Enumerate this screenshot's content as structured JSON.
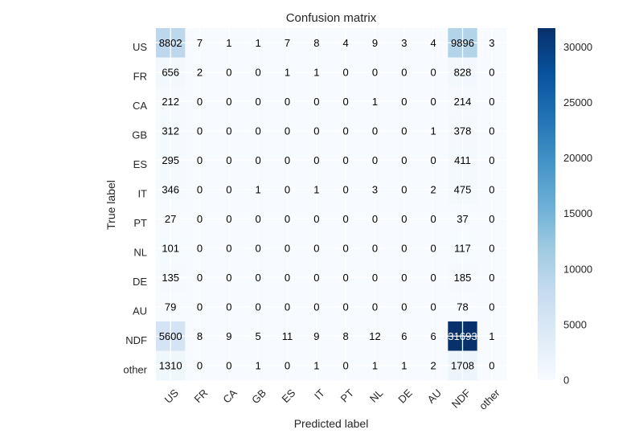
{
  "chart_data": {
    "type": "heatmap",
    "title": "Confusion matrix",
    "xlabel": "Predicted label",
    "ylabel": "True label",
    "x_categories": [
      "US",
      "FR",
      "CA",
      "GB",
      "ES",
      "IT",
      "PT",
      "NL",
      "DE",
      "AU",
      "NDF",
      "other"
    ],
    "y_categories": [
      "US",
      "FR",
      "CA",
      "GB",
      "ES",
      "IT",
      "PT",
      "NL",
      "DE",
      "AU",
      "NDF",
      "other"
    ],
    "matrix": [
      [
        8802,
        7,
        1,
        1,
        7,
        8,
        4,
        9,
        3,
        4,
        9896,
        3
      ],
      [
        656,
        2,
        0,
        0,
        1,
        1,
        0,
        0,
        0,
        0,
        828,
        0
      ],
      [
        212,
        0,
        0,
        0,
        0,
        0,
        0,
        1,
        0,
        0,
        214,
        0
      ],
      [
        312,
        0,
        0,
        0,
        0,
        0,
        0,
        0,
        0,
        1,
        378,
        0
      ],
      [
        295,
        0,
        0,
        0,
        0,
        0,
        0,
        0,
        0,
        0,
        411,
        0
      ],
      [
        346,
        0,
        0,
        1,
        0,
        1,
        0,
        3,
        0,
        2,
        475,
        0
      ],
      [
        27,
        0,
        0,
        0,
        0,
        0,
        0,
        0,
        0,
        0,
        37,
        0
      ],
      [
        101,
        0,
        0,
        0,
        0,
        0,
        0,
        0,
        0,
        0,
        117,
        0
      ],
      [
        135,
        0,
        0,
        0,
        0,
        0,
        0,
        0,
        0,
        0,
        185,
        0
      ],
      [
        79,
        0,
        0,
        0,
        0,
        0,
        0,
        0,
        0,
        0,
        78,
        0
      ],
      [
        5600,
        8,
        9,
        5,
        11,
        9,
        8,
        12,
        6,
        6,
        31693,
        1
      ],
      [
        1310,
        0,
        0,
        1,
        0,
        1,
        0,
        1,
        1,
        2,
        1708,
        0
      ]
    ],
    "colorbar": {
      "min": 0,
      "max": 31693,
      "ticks": [
        0,
        5000,
        10000,
        15000,
        20000,
        25000,
        30000
      ],
      "colormap": "Blues",
      "colormap_stops": [
        "#f7fbff",
        "#deebf7",
        "#c6dbef",
        "#9ecae1",
        "#6baed6",
        "#4292c6",
        "#2171b5",
        "#08519c",
        "#08306b"
      ]
    },
    "x_tick_rotation": 45,
    "grid": true
  }
}
